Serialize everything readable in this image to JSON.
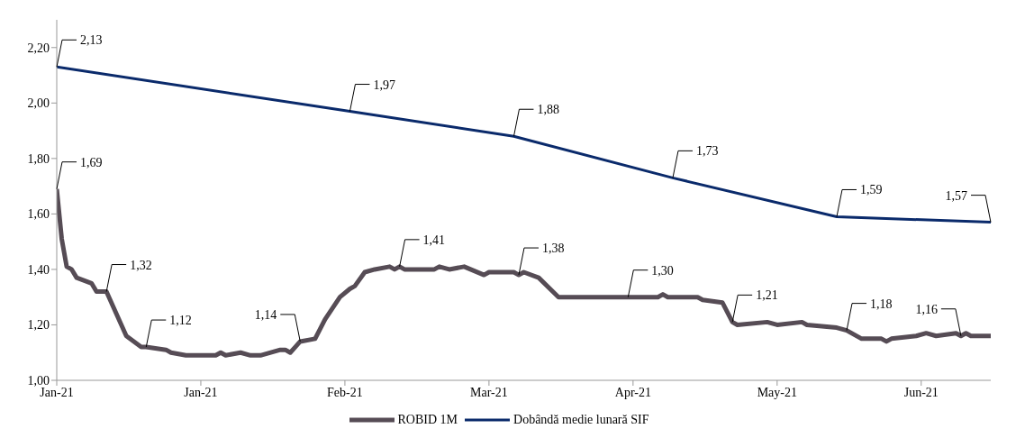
{
  "chart_data": {
    "type": "line",
    "xlim": [
      "2021-01-01",
      "2021-07-08"
    ],
    "xticks": [
      {
        "value": "2021-01-01",
        "label": "Jan-21"
      },
      {
        "value": "2021-01-30",
        "label": "Jan-21"
      },
      {
        "value": "2021-02-28",
        "label": "Feb-21"
      },
      {
        "value": "2021-03-29",
        "label": "Mar-21"
      },
      {
        "value": "2021-04-27",
        "label": "Apr-21"
      },
      {
        "value": "2021-05-26",
        "label": "May-21"
      },
      {
        "value": "2021-06-24",
        "label": "Jun-21"
      }
    ],
    "ylim": [
      1,
      2.3
    ],
    "yticks": [
      {
        "value": 1,
        "label": "1,00"
      },
      {
        "value": 1.2,
        "label": "1,20"
      },
      {
        "value": 1.4,
        "label": "1,40"
      },
      {
        "value": 1.6,
        "label": "1,60"
      },
      {
        "value": 1.8,
        "label": "1,80"
      },
      {
        "value": 2,
        "label": "2,00"
      },
      {
        "value": 2.2,
        "label": "2,20"
      }
    ],
    "grid": false,
    "legend": "bottom",
    "marker": "none",
    "line_style": "solid",
    "series": [
      {
        "name": "ROBID 1M",
        "color": "#564c55",
        "x": [
          "2021-01-01",
          "2021-01-02",
          "2021-01-03",
          "2021-01-04",
          "2021-01-05",
          "2021-01-08",
          "2021-01-09",
          "2021-01-11",
          "2021-01-15",
          "2021-01-18",
          "2021-01-19",
          "2021-01-23",
          "2021-01-24",
          "2021-01-27",
          "2021-02-02",
          "2021-02-03",
          "2021-02-04",
          "2021-02-07",
          "2021-02-09",
          "2021-02-11",
          "2021-02-15",
          "2021-02-16",
          "2021-02-17",
          "2021-02-18",
          "2021-02-19",
          "2021-02-22",
          "2021-02-24",
          "2021-02-27",
          "2021-03-01",
          "2021-03-02",
          "2021-03-04",
          "2021-03-06",
          "2021-03-09",
          "2021-03-10",
          "2021-03-11",
          "2021-03-12",
          "2021-03-18",
          "2021-03-19",
          "2021-03-21",
          "2021-03-24",
          "2021-03-28",
          "2021-03-29",
          "2021-04-03",
          "2021-04-04",
          "2021-04-05",
          "2021-04-08",
          "2021-04-12",
          "2021-04-26",
          "2021-05-02",
          "2021-05-03",
          "2021-05-04",
          "2021-05-10",
          "2021-05-11",
          "2021-05-15",
          "2021-05-17",
          "2021-05-18",
          "2021-05-24",
          "2021-05-26",
          "2021-05-31",
          "2021-06-01",
          "2021-06-07",
          "2021-06-09",
          "2021-06-12",
          "2021-06-16",
          "2021-06-17",
          "2021-06-18",
          "2021-06-23",
          "2021-06-25",
          "2021-06-27",
          "2021-07-01",
          "2021-07-02",
          "2021-07-03",
          "2021-07-04",
          "2021-07-08"
        ],
        "values": [
          1.69,
          1.51,
          1.41,
          1.4,
          1.37,
          1.35,
          1.32,
          1.32,
          1.16,
          1.12,
          1.12,
          1.11,
          1.1,
          1.09,
          1.09,
          1.1,
          1.09,
          1.1,
          1.09,
          1.09,
          1.11,
          1.11,
          1.1,
          1.12,
          1.14,
          1.15,
          1.22,
          1.3,
          1.33,
          1.34,
          1.39,
          1.4,
          1.41,
          1.4,
          1.41,
          1.4,
          1.4,
          1.41,
          1.4,
          1.41,
          1.38,
          1.39,
          1.39,
          1.38,
          1.39,
          1.37,
          1.3,
          1.3,
          1.3,
          1.31,
          1.3,
          1.3,
          1.29,
          1.28,
          1.21,
          1.2,
          1.21,
          1.2,
          1.21,
          1.2,
          1.19,
          1.18,
          1.15,
          1.15,
          1.14,
          1.15,
          1.16,
          1.17,
          1.16,
          1.17,
          1.16,
          1.17,
          1.16,
          1.16
        ],
        "value_labels": [
          "1,69",
          null,
          null,
          null,
          null,
          null,
          null,
          "1,32",
          null,
          null,
          "1,12",
          null,
          null,
          null,
          null,
          null,
          null,
          null,
          null,
          null,
          null,
          null,
          null,
          null,
          "1,14",
          null,
          null,
          null,
          null,
          null,
          null,
          null,
          null,
          null,
          "1,41",
          null,
          null,
          null,
          null,
          null,
          null,
          null,
          null,
          "1,38",
          null,
          null,
          null,
          "1,30",
          null,
          null,
          null,
          null,
          null,
          null,
          "1,21",
          null,
          null,
          null,
          null,
          null,
          null,
          "1,18",
          null,
          null,
          null,
          null,
          null,
          null,
          null,
          null,
          "1,16",
          null,
          null,
          null
        ]
      },
      {
        "name": "Dobândă medie lunară SIF",
        "color": "#0a2a6b",
        "x": [
          "2021-01-01",
          "2021-03-01",
          "2021-04-03",
          "2021-05-05",
          "2021-06-07",
          "2021-07-08"
        ],
        "values": [
          2.13,
          1.97,
          1.88,
          1.73,
          1.59,
          1.57
        ],
        "value_labels": [
          "2,13",
          "1,97",
          "1,88",
          "1,73",
          "1,59",
          "1,57"
        ]
      }
    ]
  }
}
